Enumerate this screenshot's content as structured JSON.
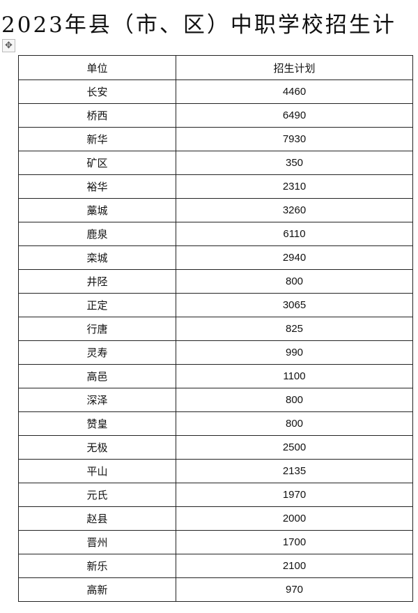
{
  "title": "2023年县（市、区）中职学校招生计",
  "table": {
    "headers": [
      "单位",
      "招生计划"
    ],
    "rows": [
      [
        "长安",
        "4460"
      ],
      [
        "桥西",
        "6490"
      ],
      [
        "新华",
        "7930"
      ],
      [
        "矿区",
        "350"
      ],
      [
        "裕华",
        "2310"
      ],
      [
        "藁城",
        "3260"
      ],
      [
        "鹿泉",
        "6110"
      ],
      [
        "栾城",
        "2940"
      ],
      [
        "井陉",
        "800"
      ],
      [
        "正定",
        "3065"
      ],
      [
        "行唐",
        "825"
      ],
      [
        "灵寿",
        "990"
      ],
      [
        "高邑",
        "1100"
      ],
      [
        "深泽",
        "800"
      ],
      [
        "赞皇",
        "800"
      ],
      [
        "无极",
        "2500"
      ],
      [
        "平山",
        "2135"
      ],
      [
        "元氏",
        "1970"
      ],
      [
        "赵县",
        "2000"
      ],
      [
        "晋州",
        "1700"
      ],
      [
        "新乐",
        "2100"
      ],
      [
        "高新",
        "970"
      ]
    ]
  },
  "icons": {
    "table_handle": "move-icon"
  }
}
